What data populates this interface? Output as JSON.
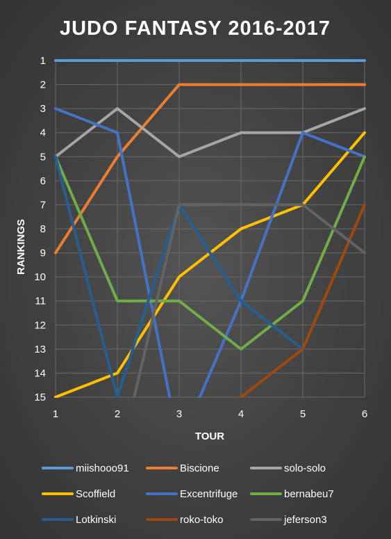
{
  "chart_data": {
    "type": "line",
    "title": "JUDO FANTASY 2016-2017",
    "xlabel": "TOUR",
    "ylabel": "RANKINGS",
    "x": [
      1,
      2,
      3,
      4,
      5,
      6
    ],
    "y_range": [
      1,
      15
    ],
    "y_inverted": true,
    "grid": true,
    "legend_position": "bottom",
    "series": [
      {
        "name": "miishooo91",
        "color": "#5b9bd5",
        "values": [
          1,
          1,
          1,
          1,
          1,
          1
        ]
      },
      {
        "name": "Biscione",
        "color": "#ed7d31",
        "values": [
          9,
          5,
          2,
          2,
          2,
          2
        ]
      },
      {
        "name": "solo-solo",
        "color": "#a5a5a5",
        "values": [
          5,
          3,
          5,
          4,
          4,
          3
        ]
      },
      {
        "name": "Scoffield",
        "color": "#ffc000",
        "values": [
          15,
          14,
          10,
          8,
          7,
          4
        ]
      },
      {
        "name": "Excentrifuge",
        "color": "#4472c4",
        "values": [
          3,
          4,
          17,
          11,
          4,
          5
        ]
      },
      {
        "name": "bernabeu7",
        "color": "#70ad47",
        "values": [
          5,
          11,
          11,
          13,
          11,
          5
        ]
      },
      {
        "name": "Lotkinski",
        "color": "#255e91",
        "values": [
          5,
          15,
          7,
          11,
          13,
          null
        ]
      },
      {
        "name": "roko-toko",
        "color": "#9e480e",
        "values": [
          null,
          null,
          null,
          15,
          13,
          7
        ]
      },
      {
        "name": "jeferson3",
        "color": "#636363",
        "values": [
          null,
          18,
          7,
          7,
          7,
          9
        ]
      }
    ]
  }
}
